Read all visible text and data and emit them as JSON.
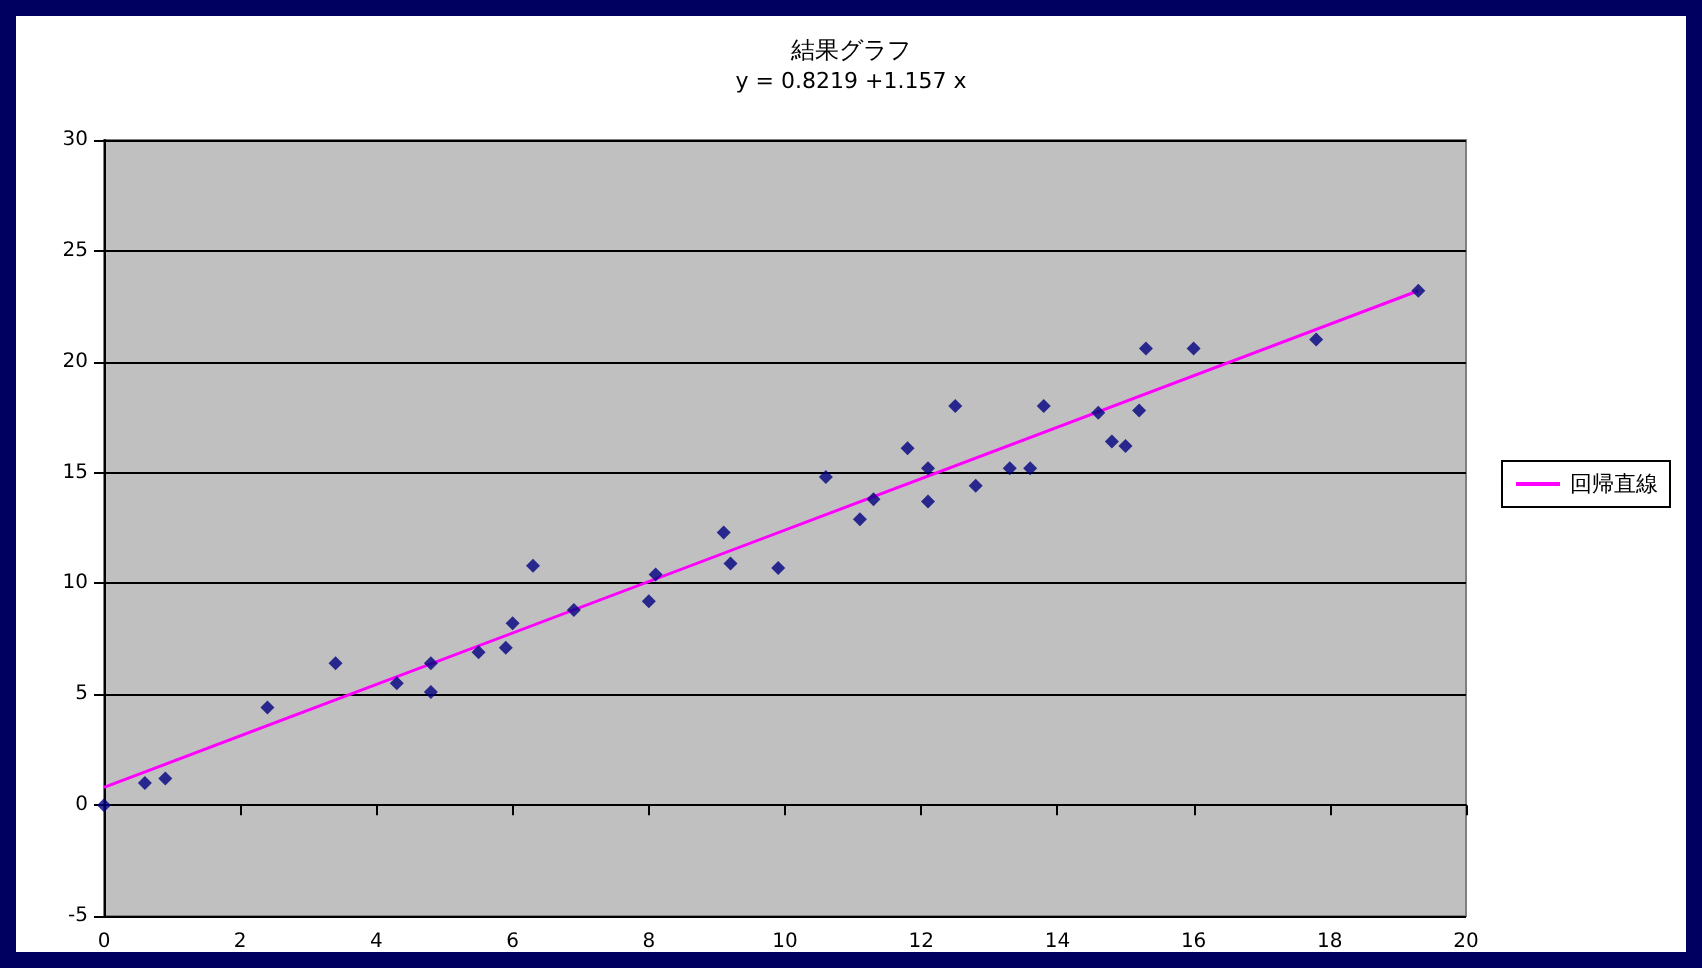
{
  "chart_data": {
    "type": "scatter",
    "title": "結果グラフ",
    "subtitle": "y = 0.8219 +1.157 x",
    "series": [
      {
        "color": "#000080",
        "marker": "diamond",
        "x": [
          0,
          0.6,
          0.9,
          2.4,
          3.4,
          4.3,
          4.8,
          4.8,
          5.5,
          5.9,
          6.0,
          6.3,
          6.9,
          8.0,
          8.1,
          9.1,
          9.2,
          9.9,
          10.6,
          11.1,
          11.3,
          11.8,
          12.1,
          12.1,
          12.5,
          12.8,
          13.3,
          13.6,
          13.8,
          14.6,
          14.8,
          15.0,
          15.2,
          15.3,
          16.0,
          17.8,
          19.3
        ],
        "values": [
          0,
          1.0,
          1.2,
          4.4,
          6.4,
          5.5,
          6.4,
          5.1,
          6.9,
          7.1,
          8.2,
          10.8,
          8.8,
          9.2,
          10.4,
          12.3,
          10.9,
          10.7,
          14.8,
          12.9,
          13.8,
          16.1,
          15.2,
          13.7,
          18.0,
          14.4,
          15.2,
          15.2,
          18.0,
          17.7,
          16.4,
          16.2,
          17.8,
          20.6,
          20.6,
          21.0,
          23.2
        ]
      },
      {
        "type": "line",
        "name": "回帰直線",
        "color": "#ff00ff",
        "marker": "none",
        "x": [
          0,
          19.3
        ],
        "values": [
          0.8,
          23.2
        ]
      }
    ],
    "xlim": [
      0,
      20
    ],
    "xticks": [
      0,
      2,
      4,
      6,
      8,
      10,
      12,
      14,
      16,
      18,
      20
    ],
    "ylim": [
      -5,
      30
    ],
    "yticks": [
      -5,
      0,
      5,
      10,
      15,
      20,
      25,
      30
    ],
    "grid": "y",
    "legend": "right"
  }
}
